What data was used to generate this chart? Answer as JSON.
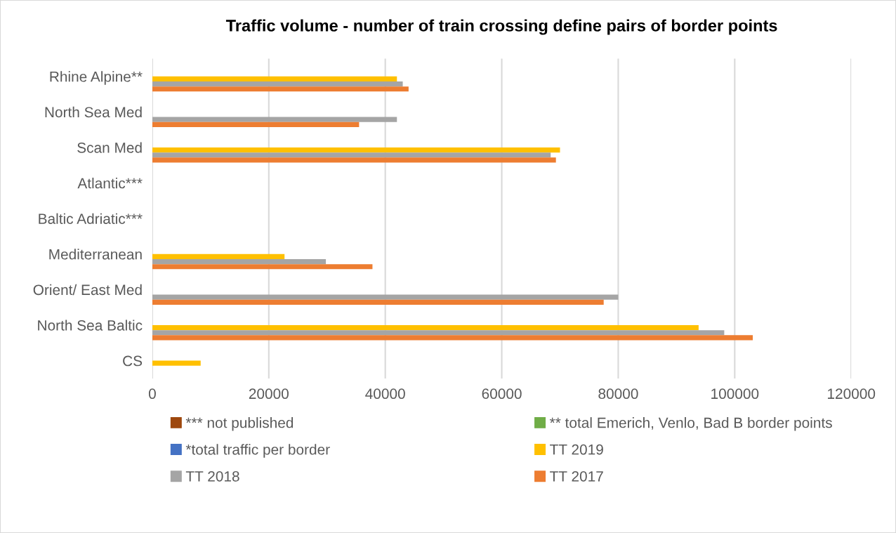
{
  "chart_data": {
    "type": "bar",
    "orientation": "horizontal",
    "title": "Traffic volume - number of train crossing define pairs of border points",
    "categories": [
      "Rhine Alpine**",
      "North Sea Med",
      "Scan Med",
      "Atlantic***",
      "Baltic Adriatic***",
      "Mediterranean",
      "Orient/ East Med",
      "North Sea Baltic",
      "CS"
    ],
    "series": [
      {
        "name": "*** not published",
        "color": "#9e480e",
        "values": [
          null,
          null,
          null,
          null,
          null,
          null,
          null,
          null,
          null
        ]
      },
      {
        "name": "** total Emerich, Venlo, Bad B border points",
        "color": "#70ad47",
        "values": [
          null,
          null,
          null,
          null,
          null,
          null,
          null,
          null,
          null
        ]
      },
      {
        "name": "*total traffic per border",
        "color": "#4472c4",
        "values": [
          null,
          null,
          null,
          null,
          null,
          null,
          null,
          null,
          null
        ]
      },
      {
        "name": "TT 2019",
        "color": "#ffc000",
        "values": [
          42000,
          null,
          70000,
          null,
          null,
          22700,
          null,
          93800,
          8300
        ]
      },
      {
        "name": "TT 2018",
        "color": "#a5a5a5",
        "values": [
          43000,
          42000,
          68400,
          null,
          null,
          29800,
          80000,
          98200,
          null
        ]
      },
      {
        "name": "TT 2017",
        "color": "#ed7d31",
        "values": [
          44000,
          35500,
          69300,
          null,
          null,
          37800,
          77500,
          103100,
          null
        ]
      }
    ],
    "xlim": [
      0,
      120000
    ],
    "xticks": [
      0,
      20000,
      40000,
      60000,
      80000,
      100000,
      120000
    ],
    "grid": "x",
    "legend": "bottom"
  }
}
